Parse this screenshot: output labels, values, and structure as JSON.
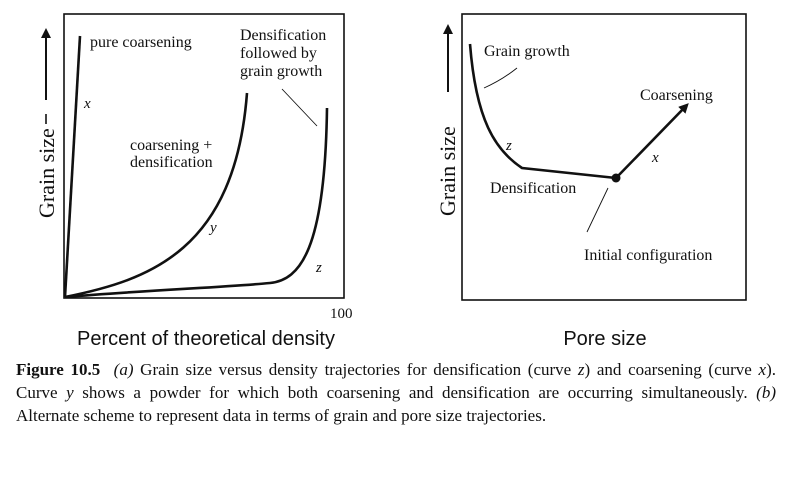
{
  "panel_a": {
    "y_axis_label": "Grain size",
    "x_axis_label": "Percent of theoretical density",
    "x_tick": "100",
    "curves": {
      "x": {
        "letter": "x",
        "label": "pure coarsening"
      },
      "y": {
        "letter": "y",
        "label_line1": "coarsening +",
        "label_line2": "densification"
      },
      "z": {
        "letter": "z",
        "label_line1": "Densification",
        "label_line2": "followed by",
        "label_line3": "grain growth"
      }
    }
  },
  "panel_b": {
    "y_axis_label": "Grain size",
    "x_axis_label": "Pore size",
    "labels": {
      "grain_growth": "Grain growth",
      "densification": "Densification",
      "coarsening": "Coarsening",
      "initial": "Initial configuration",
      "z": "z",
      "x": "x"
    }
  },
  "caption": {
    "figure": "Figure 10.5",
    "part_a": "(a)",
    "text1": " Grain size versus density trajectories for densification (curve ",
    "z": "z",
    "text2": ") and coarsening (curve ",
    "x": "x",
    "text3": "). Curve ",
    "y": "y",
    "text4": " shows a powder for which both coarsening and densification are occurring simultaneously. ",
    "part_b": "(b)",
    "text5": " Alternate scheme to represent data in terms of grain and pore size trajectories."
  }
}
